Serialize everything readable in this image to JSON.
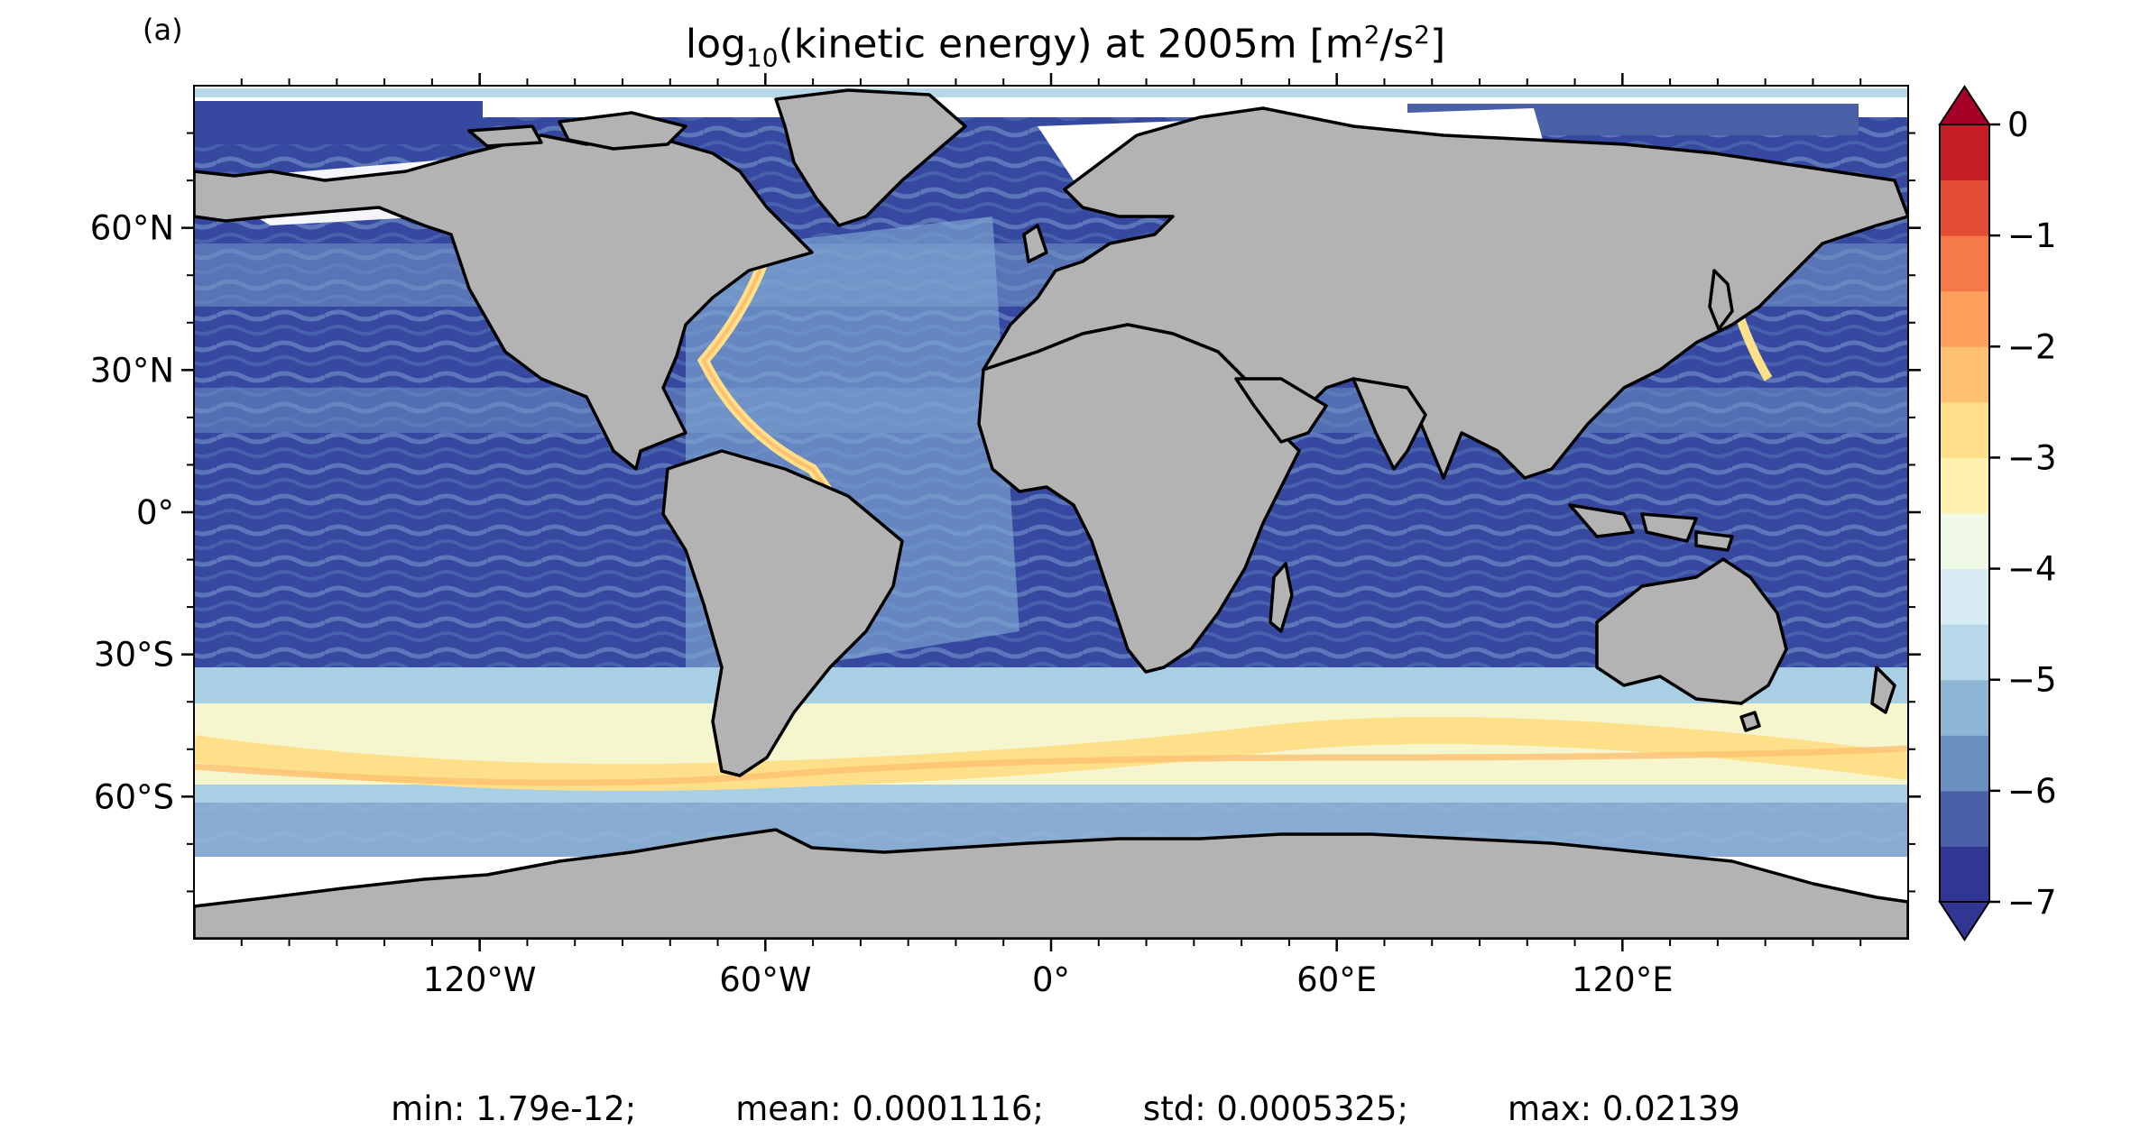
{
  "panel_label": "(a)",
  "title": {
    "prefix": "log",
    "prefix_sub": "10",
    "middle": "(kinetic energy) at 2005m [m",
    "sup1": "2",
    "slash": "/s",
    "sup2": "2",
    "suffix": "]"
  },
  "map": {
    "projection": "equirectangular",
    "lat_ticks": [
      "60°N",
      "30°N",
      "0°",
      "30°S",
      "60°S"
    ],
    "lat_values": [
      60,
      30,
      0,
      -30,
      -60
    ],
    "lon_ticks": [
      "120°W",
      "60°W",
      "0°",
      "60°E",
      "120°E"
    ],
    "lon_values": [
      -120,
      -60,
      0,
      60,
      120
    ],
    "lon_range": [
      -180,
      180
    ],
    "lat_range": [
      -90,
      90
    ],
    "land_color": "#b3b3b3",
    "coast_color": "#000000"
  },
  "colorbar": {
    "tick_labels": [
      "0",
      "−1",
      "−2",
      "−3",
      "−4",
      "−5",
      "−6",
      "−7"
    ],
    "tick_values": [
      0,
      -1,
      -2,
      -3,
      -4,
      -5,
      -6,
      -7
    ],
    "range": [
      -7,
      0
    ],
    "levels": 14,
    "extend": "both",
    "colors": [
      "#313695",
      "#4a61a8",
      "#6a8fc1",
      "#90b6d6",
      "#b6d8e8",
      "#d7ecf3",
      "#f0f9e6",
      "#fff2b0",
      "#fee08b",
      "#fdc070",
      "#fca05b",
      "#f67a49",
      "#e34d35",
      "#c41f26"
    ],
    "over_color": "#a50026",
    "under_color": "#313695"
  },
  "stats": {
    "min": "min: 1.79e-12;",
    "mean": "mean: 0.0001116;",
    "std": "std: 0.0005325;",
    "max": "max: 0.02139"
  }
}
